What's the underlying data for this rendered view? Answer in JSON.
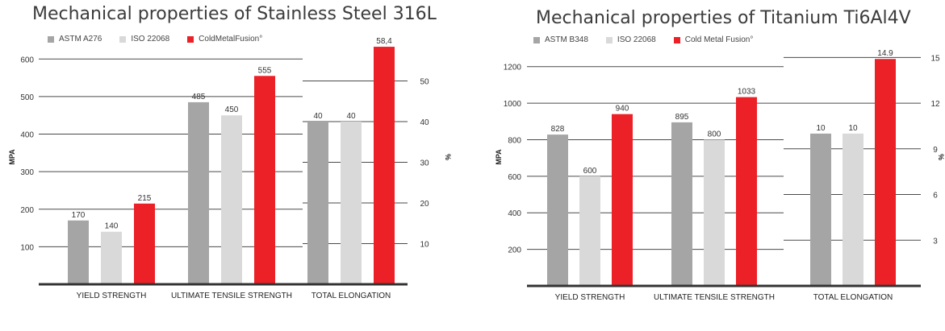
{
  "chart_data": [
    {
      "type": "bar",
      "title": "Mechanical properties of Stainless Steel 316L",
      "legend_position": "top-left",
      "grid": true,
      "ylabel": "MPA",
      "y2label": "%",
      "ylim": [
        0,
        650
      ],
      "y2lim": [
        0,
        60
      ],
      "yticks": [
        100,
        200,
        300,
        400,
        500,
        600
      ],
      "y2ticks": [
        10,
        20,
        30,
        40,
        50
      ],
      "categories": [
        "YIELD STRENGTH",
        "ULTIMATE TENSILE STRENGTH",
        "TOTAL ELONGATION"
      ],
      "category_axis": [
        "left",
        "left",
        "right"
      ],
      "series": [
        {
          "name": "ASTM A276",
          "color": "#a5a5a5",
          "values": [
            170,
            485,
            40
          ],
          "labels": [
            "170",
            "485",
            "40"
          ]
        },
        {
          "name": "ISO 22068",
          "color": "#d9d9d9",
          "values": [
            140,
            450,
            40
          ],
          "labels": [
            "140",
            "450",
            "40"
          ]
        },
        {
          "name": "ColdMetalFusion°",
          "color": "#ec2027",
          "values": [
            215,
            555,
            58.4
          ],
          "labels": [
            "215",
            "555",
            "58,4"
          ]
        }
      ]
    },
    {
      "type": "bar",
      "title": "Mechanical properties of Titanium Ti6Al4V",
      "legend_position": "top-left",
      "grid": true,
      "ylabel": "MPA",
      "y2label": "%",
      "ylim": [
        0,
        1300
      ],
      "y2lim": [
        0,
        15.6
      ],
      "yticks": [
        200,
        400,
        600,
        800,
        1000,
        1200
      ],
      "y2ticks": [
        3,
        6,
        9,
        12,
        15
      ],
      "categories": [
        "YIELD STRENGTH",
        "ULTIMATE TENSILE STRENGTH",
        "TOTAL ELONGATION"
      ],
      "category_axis": [
        "left",
        "left",
        "right"
      ],
      "series": [
        {
          "name": "ASTM B348",
          "color": "#a5a5a5",
          "values": [
            828,
            895,
            10
          ],
          "labels": [
            "828",
            "895",
            "10"
          ]
        },
        {
          "name": "ISO 22068",
          "color": "#d9d9d9",
          "values": [
            600,
            800,
            10
          ],
          "labels": [
            "600",
            "800",
            "10"
          ]
        },
        {
          "name": "Cold Metal Fusion°",
          "color": "#ec2027",
          "values": [
            940,
            1033,
            14.9
          ],
          "labels": [
            "940",
            "1033",
            "14.9"
          ]
        }
      ]
    }
  ]
}
